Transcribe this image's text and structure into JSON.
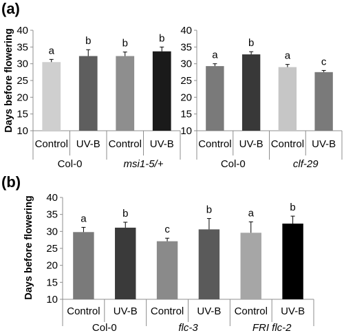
{
  "chart_data": [
    {
      "panel_label": "(a)",
      "type": "bar",
      "ylabel": "Days before flowering",
      "ylim": [
        10,
        40
      ],
      "yticks": [
        10,
        15,
        20,
        25,
        30,
        35,
        40
      ],
      "grid": false,
      "groups": [
        {
          "name": "Col-0",
          "italic": false
        },
        {
          "name": "msi1-5/+",
          "italic": true
        }
      ],
      "categories": [
        "Control",
        "UV-B",
        "Control",
        "UV-B"
      ],
      "values": [
        30.5,
        32.3,
        32.3,
        33.7
      ],
      "errors": [
        0.8,
        1.9,
        1.2,
        1.3
      ],
      "letters": [
        "a",
        "b",
        "b",
        "b"
      ],
      "colors": [
        "#cfcfcf",
        "#5e5e5e",
        "#8e8e8e",
        "#1a1a1a"
      ]
    },
    {
      "panel_label": "",
      "type": "bar",
      "ylabel": "",
      "ylim": [
        10,
        40
      ],
      "yticks": [
        10,
        15,
        20,
        25,
        30,
        35,
        40
      ],
      "grid": false,
      "groups": [
        {
          "name": "Col-0",
          "italic": false
        },
        {
          "name": "clf-29",
          "italic": true
        }
      ],
      "categories": [
        "Control",
        "UV-B",
        "Control",
        "UV-B"
      ],
      "values": [
        29.3,
        32.8,
        29.0,
        27.5
      ],
      "errors": [
        0.7,
        0.8,
        0.8,
        0.5
      ],
      "letters": [
        "a",
        "b",
        "a",
        "c"
      ],
      "colors": [
        "#7a7a7a",
        "#383838",
        "#c6c6c6",
        "#7a7a7a"
      ]
    },
    {
      "panel_label": "(b)",
      "type": "bar",
      "ylabel": "Days before flowering",
      "ylim": [
        10,
        40
      ],
      "yticks": [
        10,
        15,
        20,
        25,
        30,
        35,
        40
      ],
      "grid": false,
      "groups": [
        {
          "name": "Col-0",
          "italic": false
        },
        {
          "name": "flc-3",
          "italic": true
        },
        {
          "name": "FRI flc-2",
          "italic": true
        }
      ],
      "categories": [
        "Control",
        "UV-B",
        "Control",
        "UV-B",
        "Control",
        "UV-B"
      ],
      "values": [
        29.8,
        31.1,
        27.1,
        30.6,
        29.6,
        32.3
      ],
      "errors": [
        1.4,
        1.6,
        0.9,
        3.2,
        3.2,
        2.2
      ],
      "letters": [
        "a",
        "b",
        "c",
        "b",
        "a",
        "b"
      ],
      "colors": [
        "#7a7a7a",
        "#3a3a3a",
        "#8a8a8a",
        "#5a5a5a",
        "#a6a6a6",
        "#000000"
      ]
    }
  ]
}
